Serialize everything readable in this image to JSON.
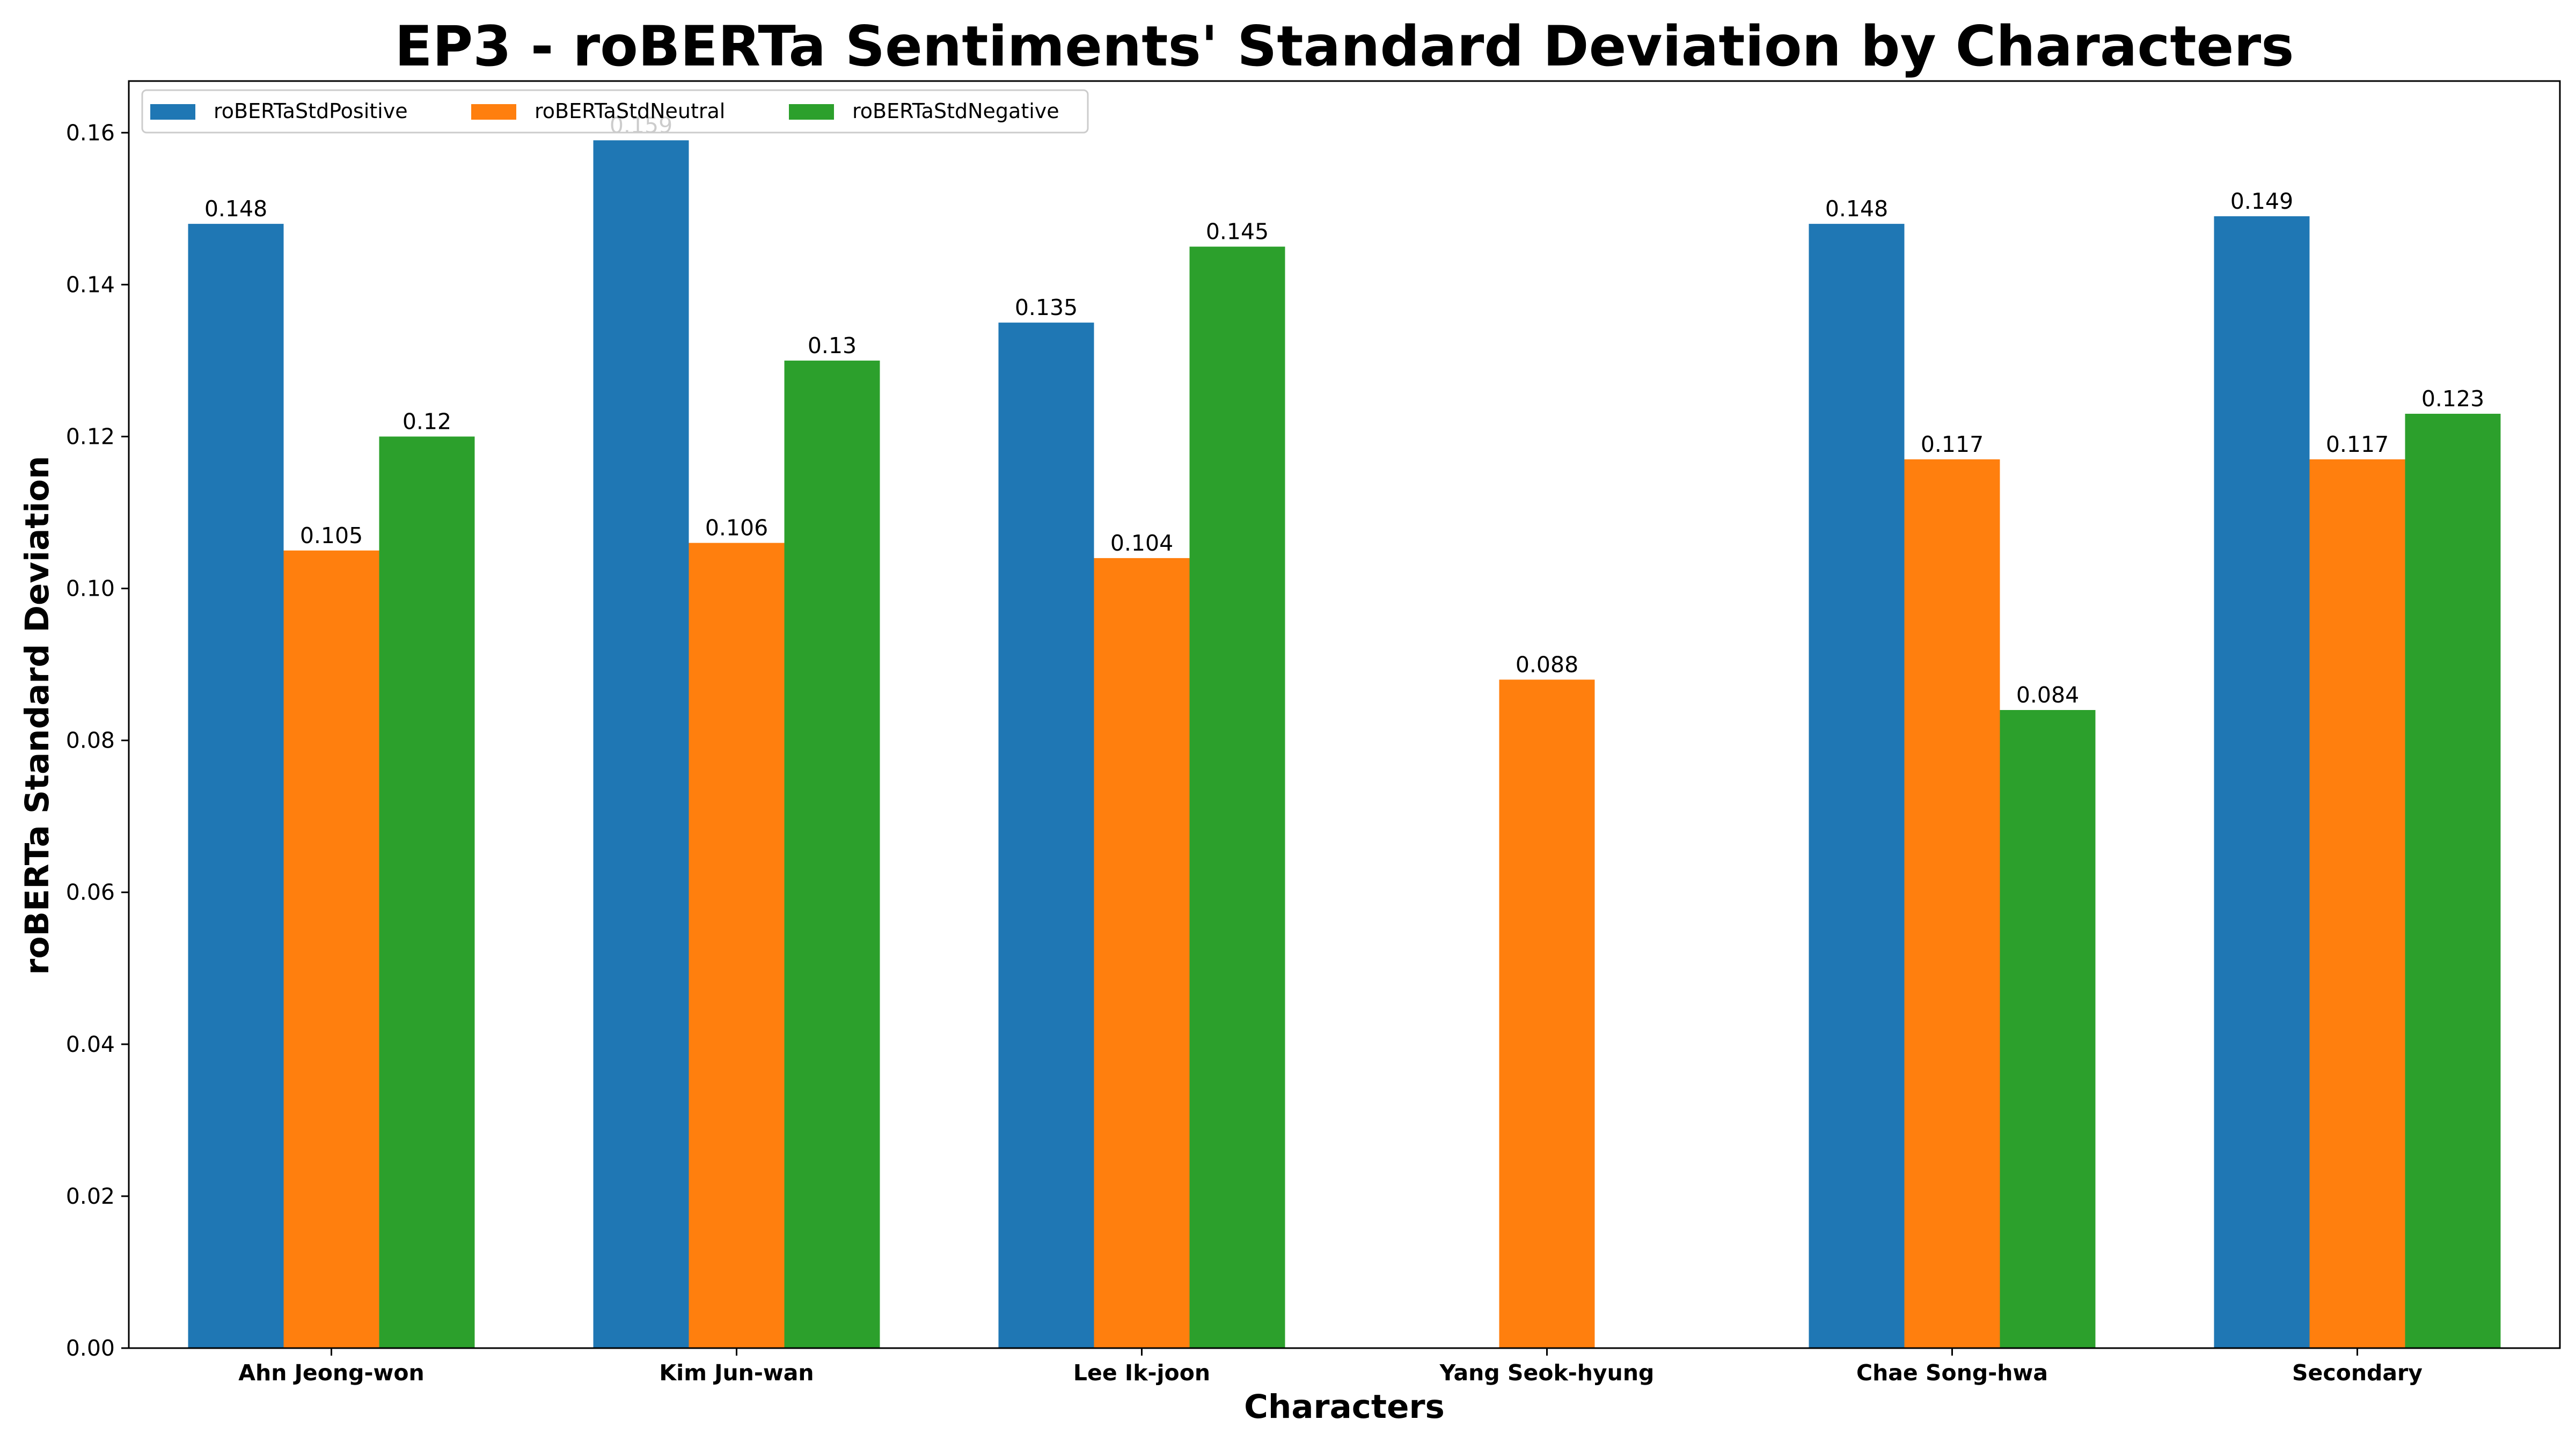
{
  "chart_data": {
    "type": "bar",
    "title": "EP3 - roBERTa Sentiments' Standard Deviation by Characters",
    "xlabel": "Characters",
    "ylabel": "roBERTa Standard Deviation",
    "categories": [
      "Ahn Jeong-won",
      "Kim Jun-wan",
      "Lee Ik-joon",
      "Yang Seok-hyung",
      "Chae Song-hwa",
      "Secondary"
    ],
    "series": [
      {
        "name": "roBERTaStdPositive",
        "color": "#1f77b4",
        "values": [
          0.148,
          0.159,
          0.135,
          null,
          0.148,
          0.149
        ],
        "labels": [
          "0.148",
          "0.159",
          "0.135",
          "",
          "0.148",
          "0.149"
        ]
      },
      {
        "name": "roBERTaStdNeutral",
        "color": "#ff7f0e",
        "values": [
          0.105,
          0.106,
          0.104,
          0.088,
          0.117,
          0.117
        ],
        "labels": [
          "0.105",
          "0.106",
          "0.104",
          "0.088",
          "0.117",
          "0.117"
        ]
      },
      {
        "name": "roBERTaStdNegative",
        "color": "#2ca02c",
        "values": [
          0.12,
          0.13,
          0.145,
          null,
          0.084,
          0.123
        ],
        "labels": [
          "0.12",
          "0.13",
          "0.145",
          "",
          "0.084",
          "0.123"
        ]
      }
    ],
    "yticks": [
      "0.00",
      "0.02",
      "0.04",
      "0.06",
      "0.08",
      "0.10",
      "0.12",
      "0.14",
      "0.16"
    ],
    "ylim": [
      0,
      0.1668
    ],
    "grid": false,
    "legend_position": "top-left"
  }
}
